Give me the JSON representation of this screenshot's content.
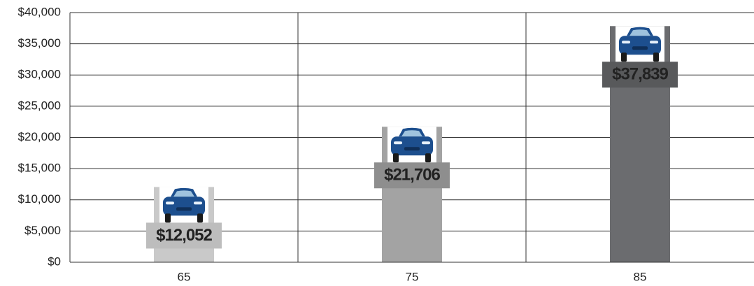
{
  "chart_data": {
    "type": "bar",
    "categories": [
      "65",
      "75",
      "85"
    ],
    "values": [
      12052,
      21706,
      37839
    ],
    "value_labels": [
      "$12,052",
      "$21,706",
      "$37,839"
    ],
    "colors": [
      "#c9c9c9",
      "#a3a3a3",
      "#6b6c6f"
    ],
    "ylim": [
      0,
      40000
    ],
    "yticks": [
      {
        "value": 0,
        "label": "$0"
      },
      {
        "value": 5000,
        "label": "$5,000"
      },
      {
        "value": 10000,
        "label": "$10,000"
      },
      {
        "value": 15000,
        "label": "$15,000"
      },
      {
        "value": 20000,
        "label": "$20,000"
      },
      {
        "value": 25000,
        "label": "$25,000"
      },
      {
        "value": 30000,
        "label": "$30,000"
      },
      {
        "value": 35000,
        "label": "$35,000"
      },
      {
        "value": 40000,
        "label": "$40,000"
      }
    ],
    "grid": true
  }
}
